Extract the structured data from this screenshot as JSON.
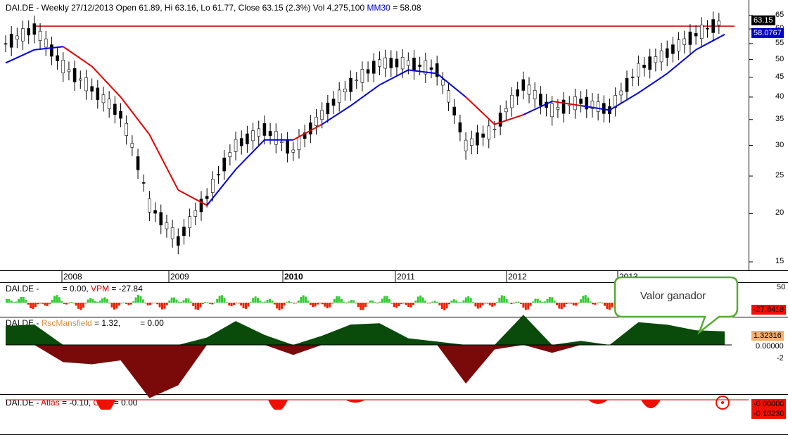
{
  "main": {
    "header": {
      "symbol": "DAI.DE",
      "rest": " - Weekly 27/12/2013 Open 61.89, Hi 63.16, Lo 61.77, Close 63.15 (2.3%) Vol 4,275,100 ",
      "ma_label": "MM30",
      "ma_value": " = 58.08"
    },
    "price_tag": "63.15",
    "ma_tag": "58.0767",
    "y_ticks": [
      "65",
      "60",
      "55",
      "50",
      "45",
      "40",
      "35",
      "30",
      "25",
      "20",
      "15"
    ],
    "years": [
      "2008",
      "2009",
      "2010",
      "2011",
      "2012",
      "2013"
    ]
  },
  "volume": {
    "header": {
      "symbol": "DAI.DE",
      "mid": " - ",
      "zero_text": "= 0.00, ",
      "vpm_label": "VPM",
      "vpm_value": " = -27.84"
    },
    "tick_top": "50",
    "tag": "-27.8418"
  },
  "rsc": {
    "header": {
      "symbol": "DAI.DE",
      "mid": " - ",
      "rsc_label": "RscMansfield",
      "rsc_value": " = 1.32,",
      "zero_text": "= 0.00"
    },
    "tag": "1.32316",
    "zero_tag": "0.00000",
    "tick_neg": "-2"
  },
  "atlas": {
    "header": {
      "symbol": "DAI.DE",
      "mid": " - ",
      "atlas_label": "Atlas",
      "atlas_value": " = -0.10, ",
      "cero_label": "Cero",
      "cero_value": " = 0.00"
    },
    "tag_zero": "-0.00000",
    "tag_val": "-0.10230"
  },
  "callout": {
    "text": "Valor ganador"
  },
  "colors": {
    "price_line": "#e00000",
    "ma_line": "#0000dd",
    "resistance": "#cc0000",
    "vpm_pos": "#33cc33",
    "vpm_neg": "#ee2200",
    "rsc_pos": "#0a4a0a",
    "rsc_neg": "#7a0a0a"
  },
  "chart_data": [
    {
      "type": "line",
      "title": "DAI.DE - Weekly 27/12/2013",
      "x": [
        "2007-10",
        "2008-01",
        "2008-04",
        "2008-07",
        "2008-10",
        "2009-01",
        "2009-04",
        "2009-07",
        "2009-10",
        "2010-01",
        "2010-04",
        "2010-07",
        "2010-10",
        "2011-01",
        "2011-04",
        "2011-07",
        "2011-10",
        "2012-01",
        "2012-04",
        "2012-07",
        "2012-10",
        "2013-01",
        "2013-04",
        "2013-07",
        "2013-10",
        "2013-12"
      ],
      "series": [
        {
          "name": "DAI.DE",
          "values": [
            55,
            60,
            48,
            42,
            36,
            21,
            17,
            22,
            30,
            33,
            29,
            36,
            43,
            49,
            49,
            47,
            30,
            33,
            43,
            37,
            39,
            37,
            47,
            52,
            58,
            63.15
          ]
        },
        {
          "name": "MM30",
          "values": [
            49,
            53,
            54,
            48,
            40,
            32,
            23,
            21,
            26,
            31,
            31,
            34,
            38,
            43,
            47,
            46,
            40,
            34,
            36,
            39,
            38,
            37,
            41,
            46,
            53,
            58.08
          ]
        }
      ],
      "ylim": [
        15,
        65
      ],
      "yscale": "log",
      "resistance": 61.0
    }
  ]
}
